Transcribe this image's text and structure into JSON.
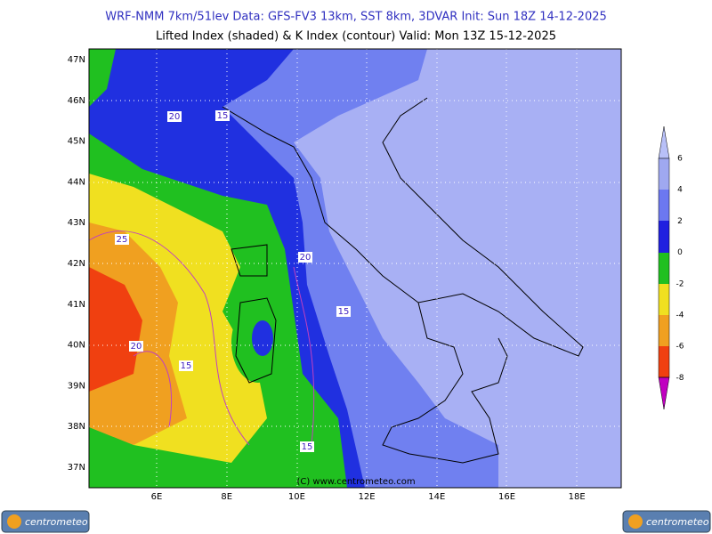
{
  "header": {
    "line1": "WRF-NMM 7km/51lev   Data: GFS-FV3 13km, SST 8km, 3DVAR   Init: Sun 18Z 14-12-2025",
    "line2": "Lifted Index (shaded) & K Index (contour)  Valid: Mon 13Z 15-12-2025"
  },
  "map": {
    "lat_labels": [
      "47N",
      "46N",
      "45N",
      "44N",
      "43N",
      "42N",
      "41N",
      "40N",
      "39N",
      "38N",
      "37N"
    ],
    "lon_labels": [
      "6E",
      "8E",
      "10E",
      "12E",
      "14E",
      "16E",
      "18E"
    ],
    "contour_labels": [
      "20",
      "15",
      "25",
      "20",
      "15",
      "20",
      "15",
      "15"
    ],
    "copyright": "(C) www.centrometeo.com"
  },
  "legend": {
    "levels": [
      "6",
      "4",
      "2",
      "0",
      "-2",
      "-4",
      "-6",
      "-8"
    ]
  },
  "footer": {
    "logo_left": "centrometeo",
    "logo_right": "centrometeo"
  }
}
